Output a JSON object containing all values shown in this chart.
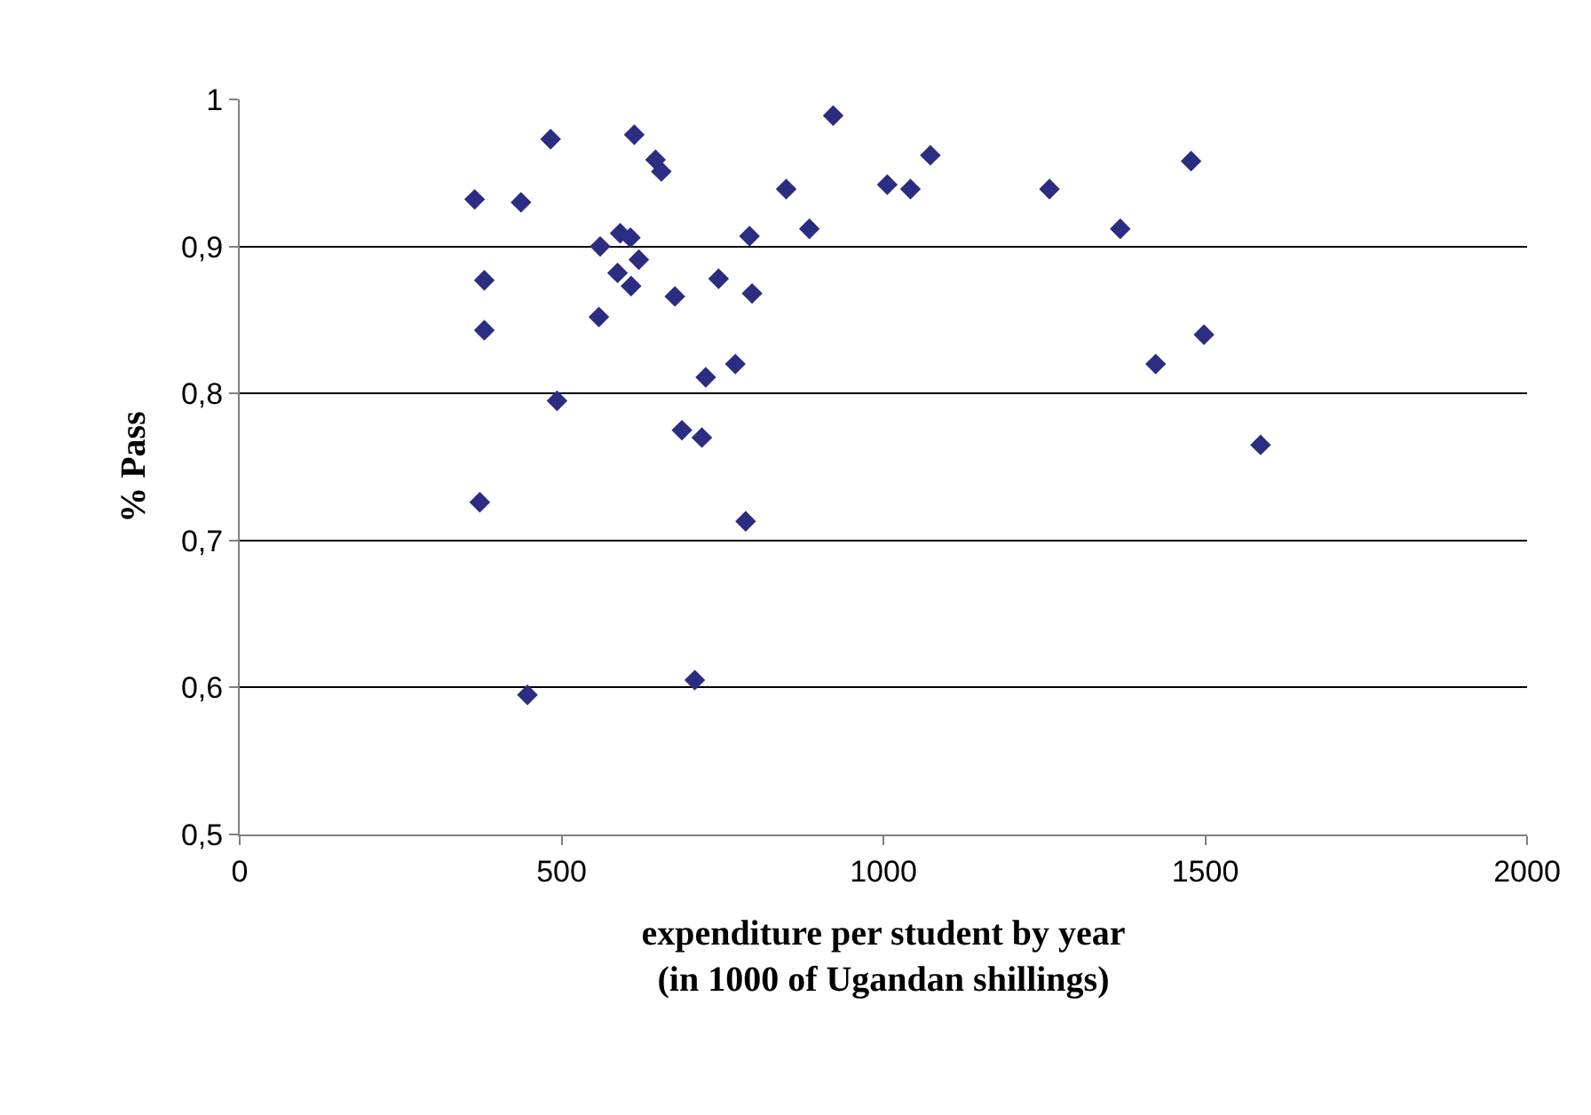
{
  "chart_data": {
    "type": "scatter",
    "xlabel": "expenditure per student by year\n(in 1000 of Ugandan shillings)",
    "ylabel": "% Pass",
    "x": [
      365,
      380,
      380,
      373,
      437,
      447,
      483,
      493,
      560,
      558,
      613,
      922,
      646,
      655,
      849,
      1006,
      1042,
      1073,
      1258,
      591,
      607,
      792,
      885,
      620,
      587,
      608,
      744,
      676,
      796,
      770,
      724,
      687,
      718,
      786,
      707,
      1368,
      1478,
      1423,
      1498,
      1586
    ],
    "values": [
      0.932,
      0.877,
      0.843,
      0.726,
      0.93,
      0.595,
      0.973,
      0.795,
      0.9,
      0.852,
      0.976,
      0.989,
      0.959,
      0.951,
      0.939,
      0.942,
      0.939,
      0.962,
      0.939,
      0.909,
      0.906,
      0.907,
      0.912,
      0.891,
      0.882,
      0.873,
      0.878,
      0.866,
      0.868,
      0.82,
      0.811,
      0.775,
      0.77,
      0.713,
      0.605,
      0.912,
      0.958,
      0.82,
      0.84,
      0.765
    ],
    "color": "#2b2d82",
    "marker": "diamond",
    "xlim": [
      0,
      2000
    ],
    "xticks": [
      0,
      500,
      1000,
      1500,
      2000
    ],
    "ylim": [
      0.5,
      1
    ],
    "yticks": [
      {
        "value": 0.5,
        "label": "0,5"
      },
      {
        "value": 0.6,
        "label": "0,6"
      },
      {
        "value": 0.7,
        "label": "0,7"
      },
      {
        "value": 0.8,
        "label": "0,8"
      },
      {
        "value": 0.9,
        "label": "0,9"
      },
      {
        "value": 1,
        "label": "1"
      }
    ],
    "grid": "y"
  }
}
